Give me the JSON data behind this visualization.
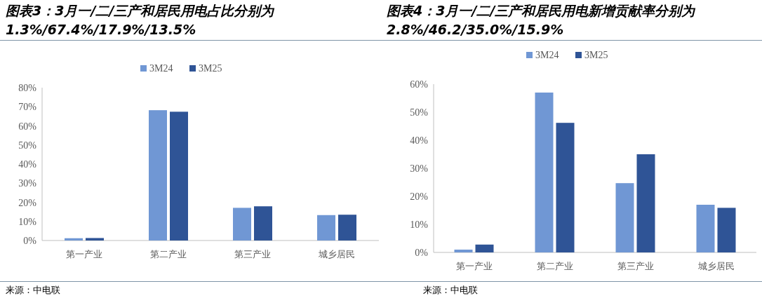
{
  "chart_data": [
    {
      "type": "bar",
      "title": "图表3：3月一/二/三产和居民用电占比分别为1.3%/67.4%/17.9%/13.5%",
      "categories": [
        "第一产业",
        "第二产业",
        "第三产业",
        "城乡居民"
      ],
      "series": [
        {
          "name": "3M24",
          "color": "#7097d4",
          "values": [
            1.2,
            68.2,
            17.1,
            13.3
          ]
        },
        {
          "name": "3M25",
          "color": "#2f5496",
          "values": [
            1.3,
            67.4,
            17.9,
            13.5
          ]
        }
      ],
      "ylim": [
        0,
        80
      ],
      "yticks": [
        {
          "value": 0,
          "label": "0%"
        },
        {
          "value": 10,
          "label": "10%"
        },
        {
          "value": 20,
          "label": "20%"
        },
        {
          "value": 30,
          "label": "30%"
        },
        {
          "value": 40,
          "label": "40%"
        },
        {
          "value": 50,
          "label": "50%"
        },
        {
          "value": 60,
          "label": "60%"
        },
        {
          "value": 70,
          "label": "70%"
        },
        {
          "value": 80,
          "label": "80%"
        }
      ],
      "legend": "top",
      "annotations": [
        "来源：中电联"
      ]
    },
    {
      "type": "bar",
      "title": "图表4：3月一/二/三产和居民用电新增贡献率分别为2.8%/46.2/35.0%/15.9%",
      "categories": [
        "第一产业",
        "第二产业",
        "第三产业",
        "城乡居民"
      ],
      "series": [
        {
          "name": "3M24",
          "color": "#7097d4",
          "values": [
            1.0,
            57.0,
            24.7,
            17.0
          ]
        },
        {
          "name": "3M25",
          "color": "#2f5496",
          "values": [
            2.8,
            46.2,
            35.0,
            15.9
          ]
        }
      ],
      "ylim": [
        0,
        60
      ],
      "yticks": [
        {
          "value": 0,
          "label": "0%"
        },
        {
          "value": 10,
          "label": "10%"
        },
        {
          "value": 20,
          "label": "20%"
        },
        {
          "value": 30,
          "label": "30%"
        },
        {
          "value": 40,
          "label": "40%"
        },
        {
          "value": 50,
          "label": "50%"
        },
        {
          "value": 60,
          "label": "60%"
        }
      ],
      "legend": "top",
      "annotations": [
        "来源：中电联"
      ]
    }
  ]
}
